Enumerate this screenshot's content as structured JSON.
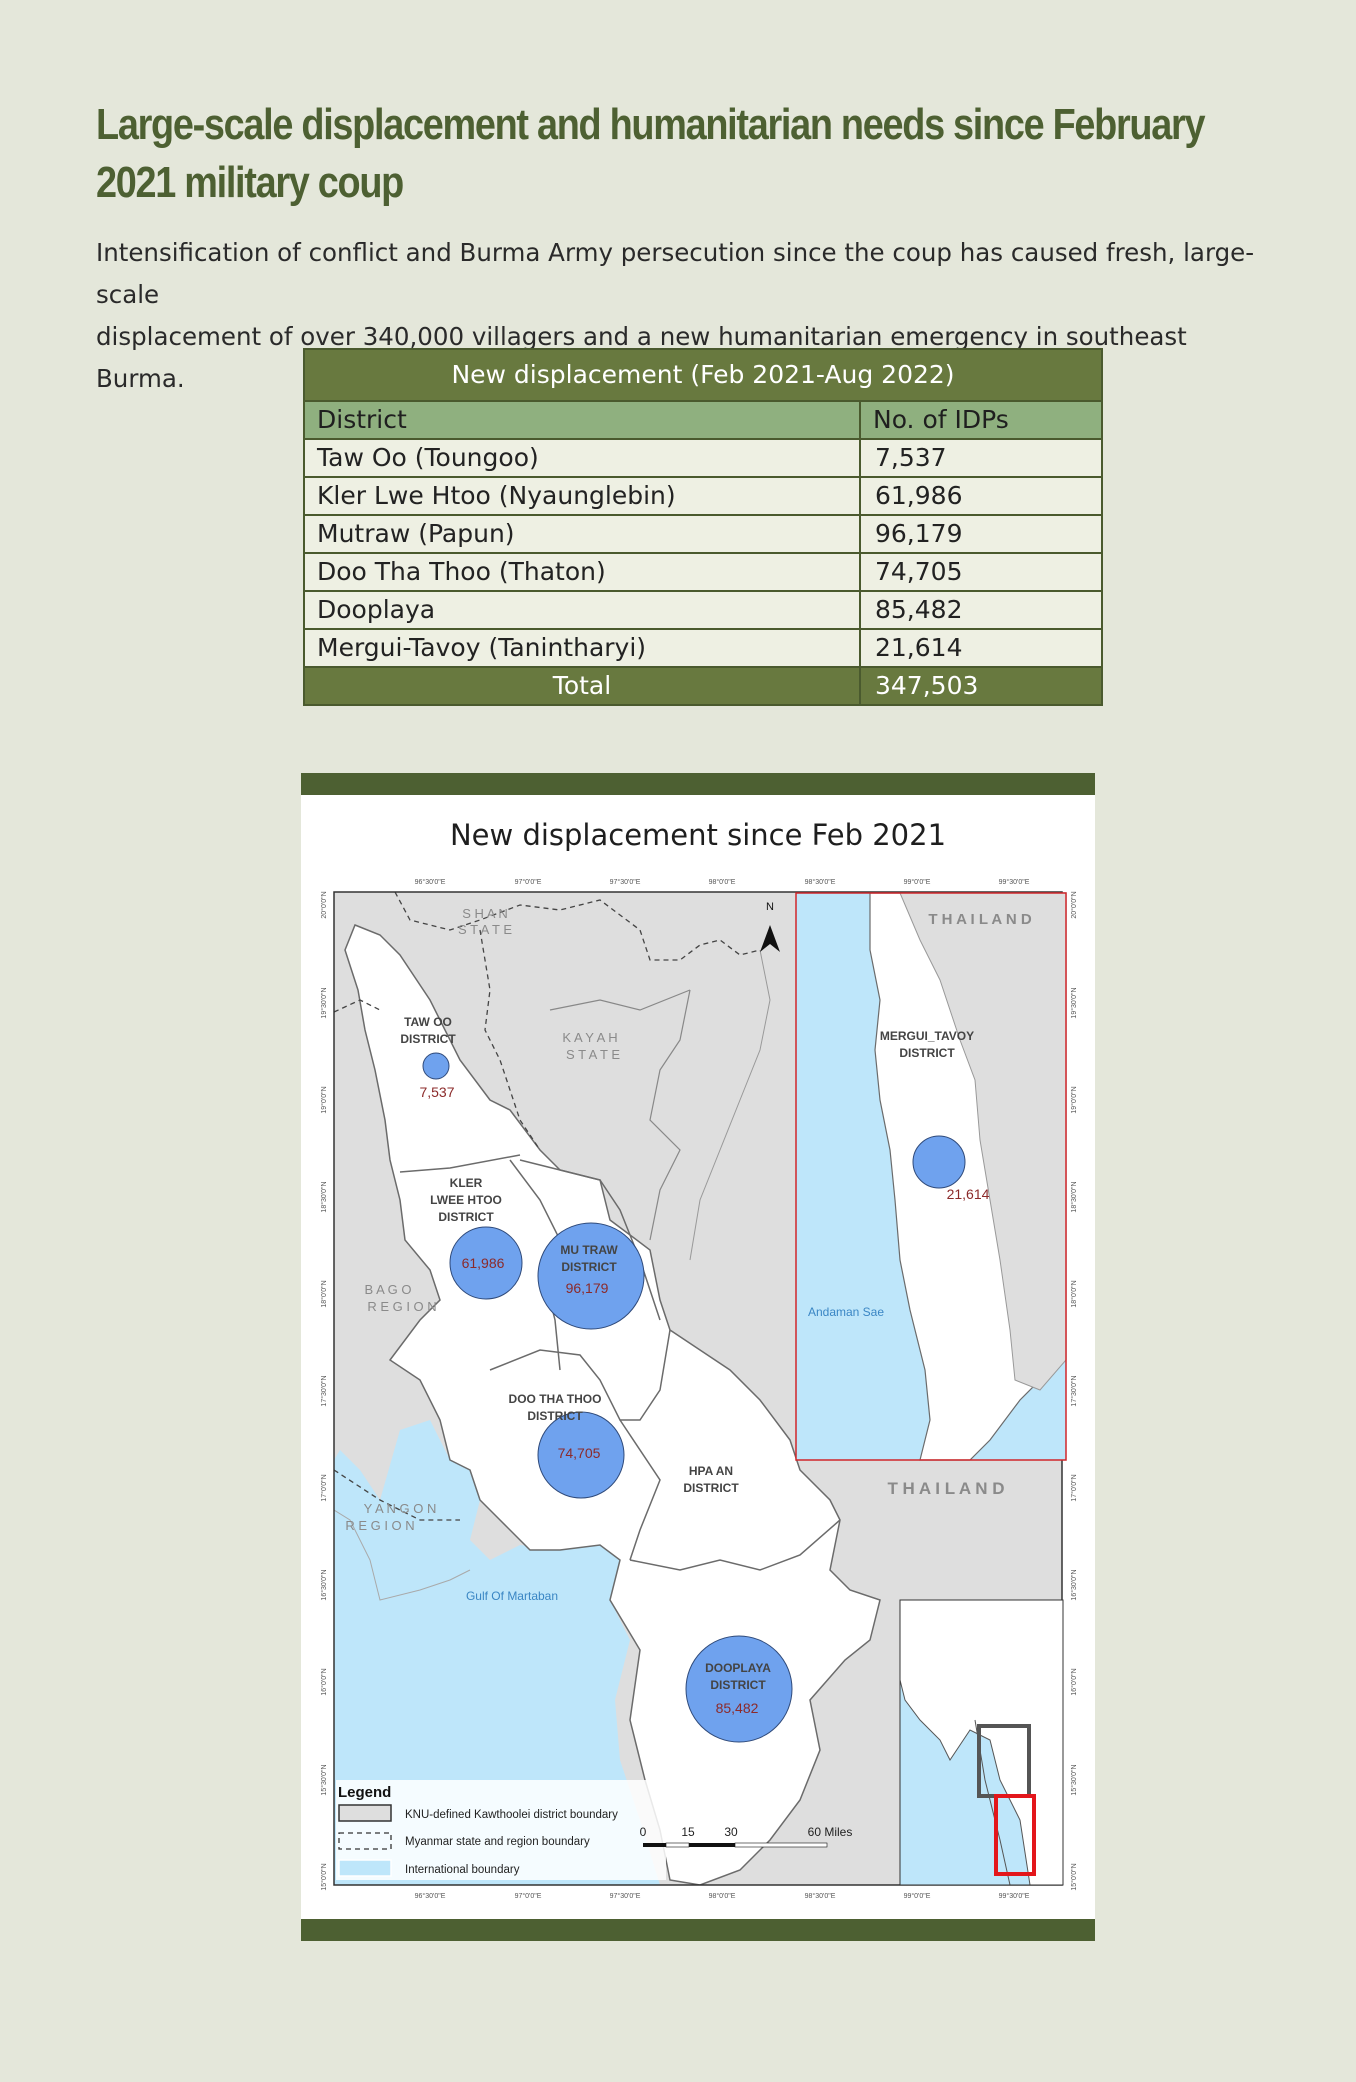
{
  "headline": {
    "line1": "Large-scale displacement and humanitarian needs since February",
    "line2": "2021 military coup"
  },
  "intro": {
    "line1": "Intensification of conflict and Burma Army persecution since the coup has caused fresh, large-scale",
    "line2": "displacement of over 340,000 villagers and a new humanitarian emergency in southeast Burma."
  },
  "table": {
    "caption": "New displacement (Feb 2021-Aug 2022)",
    "headers": [
      "District",
      "No. of IDPs"
    ],
    "rows": [
      {
        "district": "Taw Oo (Toungoo)",
        "idps": "7,537"
      },
      {
        "district": "Kler Lwe Htoo (Nyaunglebin)",
        "idps": "61,986"
      },
      {
        "district": "Mutraw (Papun)",
        "idps": "96,179"
      },
      {
        "district": "Doo Tha Thoo (Thaton)",
        "idps": "74,705"
      },
      {
        "district": "Dooplaya",
        "idps": "85,482"
      },
      {
        "district": "Mergui-Tavoy (Tanintharyi)",
        "idps": "21,614"
      }
    ],
    "total_label": "Total",
    "total_value": "347,503"
  },
  "map": {
    "title": "New displacement since Feb 2021",
    "top_ticks": [
      "96°30'0\"E",
      "97°0'0\"E",
      "97°30'0\"E",
      "98°0'0\"E",
      "98°30'0\"E",
      "99°0'0\"E",
      "99°30'0\"E"
    ],
    "bottom_ticks": [
      "96°30'0\"E",
      "97°0'0\"E",
      "97°30'0\"E",
      "98°0'0\"E",
      "98°30'0\"E",
      "99°0'0\"E",
      "99°30'0\"E"
    ],
    "left_ticks": [
      "20°0'0\"N",
      "19°30'0\"N",
      "19°0'0\"N",
      "18°30'0\"N",
      "18°0'0\"N",
      "17°30'0\"N",
      "17°0'0\"N",
      "16°30'0\"N",
      "16°0'0\"N",
      "15°30'0\"N",
      "15°0'0\"N"
    ],
    "right_ticks": [
      "20°0'0\"N",
      "19°30'0\"N",
      "19°0'0\"N",
      "18°30'0\"N",
      "18°0'0\"N",
      "17°30'0\"N",
      "17°0'0\"N",
      "16°30'0\"N",
      "16°0'0\"N",
      "15°30'0\"N",
      "15°0'0\"N"
    ],
    "regions": {
      "shan_1": "S H A N",
      "shan_2": "S T A T E",
      "kayah_1": "K A Y A H",
      "kayah_2": "S T A T E",
      "bago_1": "B A G O",
      "bago_2": "R E G I O N",
      "yangon_1": "Y A N G O N",
      "yangon_2": "R E G I O N",
      "thailand_inset": "T H A I L A N D",
      "thailand_main": "T H A I L A N D",
      "gulf": "Gulf Of Martaban",
      "andaman": "Andaman Sae",
      "north_arrow": "N"
    },
    "districts": {
      "tawoo_1": "TAW OO",
      "tawoo_2": "DISTRICT",
      "tawoo_val": "7,537",
      "kler_1": "KLER",
      "kler_2": "LWEE HTOO",
      "kler_3": "DISTRICT",
      "kler_val": "61,986",
      "mutraw_1": "MU TRAW",
      "mutraw_2": "DISTRICT",
      "mutraw_val": "96,179",
      "doo_1": "DOO THA THOO",
      "doo_2": "DISTRICT",
      "doo_val": "74,705",
      "hpaan_1": "HPA AN",
      "hpaan_2": "DISTRICT",
      "dooplaya_1": "DOOPLAYA",
      "dooplaya_2": "DISTRICT",
      "dooplaya_val": "85,482",
      "mergui_1": "MERGUI_TAVOY",
      "mergui_2": "DISTRICT",
      "mergui_val": "21,614"
    },
    "legend": {
      "title": "Legend",
      "item1": "KNU-defined Kawthoolei district boundary",
      "item2": "Myanmar state and region boundary",
      "item3": "International boundary"
    },
    "scale": {
      "t0": "0",
      "t1": "15",
      "t2": "30",
      "t3": "60 Miles"
    },
    "colors": {
      "land": "#dedede",
      "karen": "#ffffff",
      "water": "#bee6fa",
      "bubble": "#6fa2ee",
      "value_text": "#8b2a2a",
      "inset_border": "#d0262a"
    }
  }
}
